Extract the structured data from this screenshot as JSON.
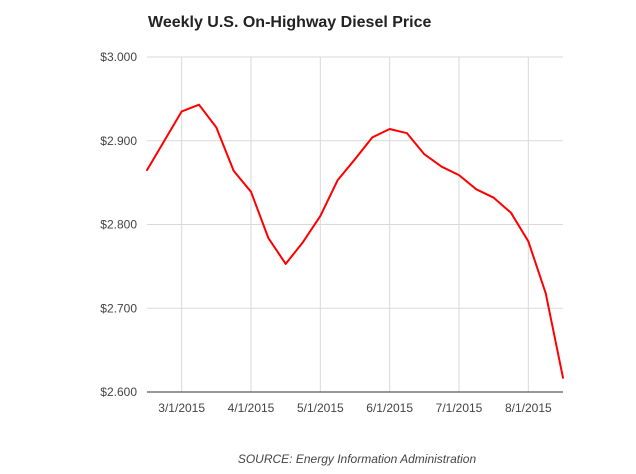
{
  "chart_data": {
    "type": "line",
    "title": "Weekly U.S. On-Highway Diesel Price",
    "source": "SOURCE: Energy Information Administration",
    "xlabel": "",
    "ylabel": "",
    "grid": true,
    "legend": "none",
    "ylim": [
      2.6,
      3.0
    ],
    "y_ticks": [
      2.6,
      2.7,
      2.8,
      2.9,
      3.0
    ],
    "y_tick_labels": [
      "$2.600",
      "$2.700",
      "$2.800",
      "$2.900",
      "$3.000"
    ],
    "x_tick_labels": [
      "3/1/2015",
      "4/1/2015",
      "5/1/2015",
      "6/1/2015",
      "7/1/2015",
      "8/1/2015"
    ],
    "x_tick_week_index": [
      1.0,
      3.0,
      5.0,
      7.0,
      9.0,
      11.0
    ],
    "week_range": [
      0,
      12
    ],
    "series": [
      {
        "name": "Diesel Price",
        "color": "#ff0000",
        "x": [
          0,
          1,
          1.5,
          2,
          2.5,
          3,
          3.5,
          4,
          4.5,
          5,
          5.5,
          6,
          6.5,
          7,
          7.5,
          8,
          8.5,
          9,
          9.5,
          10,
          10.5,
          11,
          11.5,
          12
        ],
        "values": [
          2.865,
          2.935,
          2.943,
          2.916,
          2.864,
          2.839,
          2.784,
          2.753,
          2.779,
          2.81,
          2.853,
          2.878,
          2.904,
          2.914,
          2.909,
          2.884,
          2.869,
          2.859,
          2.842,
          2.832,
          2.814,
          2.78,
          2.718,
          2.617
        ]
      }
    ],
    "colors": {
      "line": "#ff0000",
      "grid": "#d9d9d9",
      "baseline": "#333333",
      "text": "#444444"
    }
  }
}
